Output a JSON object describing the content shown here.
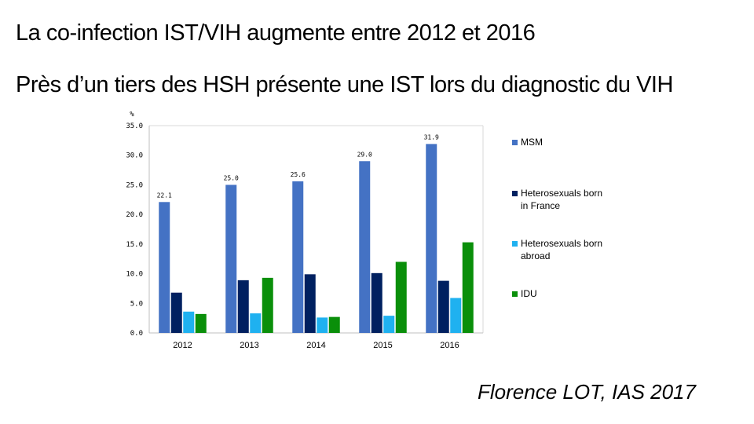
{
  "title": "La co-infection IST/VIH augmente entre 2012 et 2016",
  "subtitle": "Près d’un tiers des HSH présente une IST lors du diagnostic du VIH",
  "source": "Florence LOT, IAS 2017",
  "chart_data": {
    "type": "bar",
    "ylabel": "%",
    "categories": [
      "2012",
      "2013",
      "2014",
      "2015",
      "2016"
    ],
    "ylim": [
      0,
      35
    ],
    "yticks": [
      "0.0",
      "5.0",
      "10.0",
      "15.0",
      "20.0",
      "25.0",
      "30.0",
      "35.0"
    ],
    "grid": false,
    "legend_position": "right",
    "series": [
      {
        "name": "MSM",
        "color": "#4472c4",
        "values": [
          22.1,
          25.0,
          25.6,
          29.0,
          31.9
        ],
        "labels": [
          "22.1",
          "25.0",
          "25.6",
          "29.0",
          "31.9"
        ]
      },
      {
        "name": "Heterosexuals born in France",
        "color": "#002060",
        "values": [
          6.8,
          8.9,
          9.9,
          10.1,
          8.8
        ]
      },
      {
        "name": "Heterosexuals born abroad",
        "color": "#1fb1f0",
        "values": [
          3.6,
          3.3,
          2.6,
          2.9,
          5.9
        ]
      },
      {
        "name": "IDU",
        "color": "#0a8f0a",
        "values": [
          3.2,
          9.3,
          2.7,
          12.0,
          15.3
        ]
      }
    ]
  }
}
